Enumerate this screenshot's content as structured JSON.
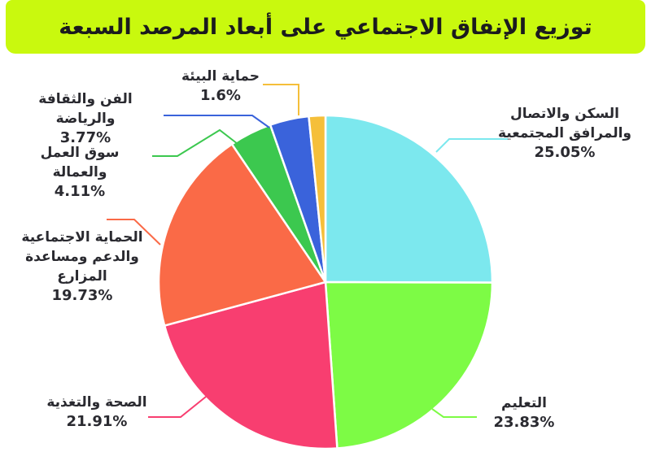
{
  "title": "توزيع الإنفاق الاجتماعي على أبعاد المرصد السبعة",
  "colors": {
    "banner_bg": "#C9F90E",
    "title_text": "#1B1B1E",
    "label_text": "#2A2A30",
    "background": "#FFFFFF",
    "slice_gap": "#FFFFFF"
  },
  "chart_data": {
    "type": "pie",
    "title": "توزيع الإنفاق الاجتماعي على أبعاد المرصد السبعة",
    "start_angle_deg": 0,
    "direction": "clockwise",
    "legend_position": "callout-labels",
    "slices": [
      {
        "id": "housing",
        "label_lines": [
          "السكن والاتصال",
          "والمرافق المجتمعية"
        ],
        "pct_label": "25.05%",
        "value": 25.05,
        "color": "#7CE8EE"
      },
      {
        "id": "education",
        "label_lines": [
          "التعليم"
        ],
        "pct_label": "23.83%",
        "value": 23.83,
        "color": "#7DFB45"
      },
      {
        "id": "health",
        "label_lines": [
          "الصحة والتغذية"
        ],
        "pct_label": "21.91%",
        "value": 21.91,
        "color": "#F83E70"
      },
      {
        "id": "protection",
        "label_lines": [
          "الحماية الاجتماعية",
          "والدعم ومساعدة المزارع"
        ],
        "pct_label": "19.73%",
        "value": 19.73,
        "color": "#FA6A47"
      },
      {
        "id": "labor",
        "label_lines": [
          "سوق العمل والعمالة"
        ],
        "pct_label": "4.11%",
        "value": 4.11,
        "color": "#3CC84F"
      },
      {
        "id": "arts",
        "label_lines": [
          "الفن والثقافة والرياضة"
        ],
        "pct_label": "3.77%",
        "value": 3.77,
        "color": "#3A63DB"
      },
      {
        "id": "environment",
        "label_lines": [
          "حماية البيئة"
        ],
        "pct_label": "1.6%",
        "value": 1.6,
        "color": "#F5BF3A"
      }
    ]
  }
}
